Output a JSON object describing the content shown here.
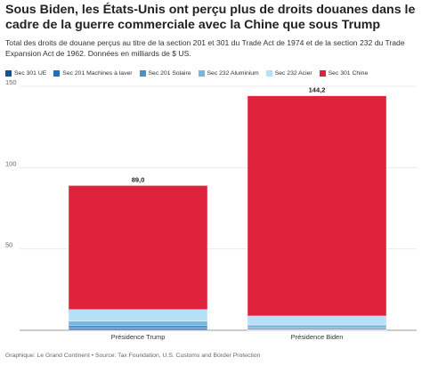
{
  "chart_data": {
    "type": "bar",
    "stacked": true,
    "title": "Sous Biden, les États-Unis ont perçu plus de droits douanes dans le cadre de la guerre commerciale avec la Chine que sous Trump",
    "subtitle": "Total des droits de douane perçus au titre de la section 201 et 301 du Trade Act de 1974 et de la section 232 du Trade Expansion Act de 1962. Données en milliards de $ US.",
    "categories": [
      "Présidence Trump",
      "Présidence Biden"
    ],
    "series": [
      {
        "name": "Sec 301 UE",
        "color": "#1d4e89",
        "values": [
          0.6,
          0.1
        ]
      },
      {
        "name": "Sec 201 Machines à laver",
        "color": "#2a6db4",
        "values": [
          1.0,
          0.4
        ]
      },
      {
        "name": "Sec 201 Solaire",
        "color": "#4a90c8",
        "values": [
          1.5,
          0.8
        ]
      },
      {
        "name": "Sec 232 Aluminium",
        "color": "#7ab6dd",
        "values": [
          2.6,
          2.0
        ]
      },
      {
        "name": "Sec 232 Acier",
        "color": "#b6e0f5",
        "values": [
          7.0,
          5.5
        ]
      },
      {
        "name": "Sec 301 Chine",
        "color": "#e0233c",
        "values": [
          76.3,
          135.4
        ]
      }
    ],
    "totals": [
      "89,0",
      "144,2"
    ],
    "total_values": [
      89.0,
      144.2
    ],
    "ylim": [
      0,
      150
    ],
    "yticks": [
      0,
      50,
      100,
      150
    ],
    "ytick_labels": [
      "",
      "50",
      "100",
      "150"
    ],
    "grid": true,
    "legend_position": "top-left"
  },
  "footer": "Graphique: Le Grand Continent • Source: Tax Foundation, U.S. Customs and Border Protection"
}
